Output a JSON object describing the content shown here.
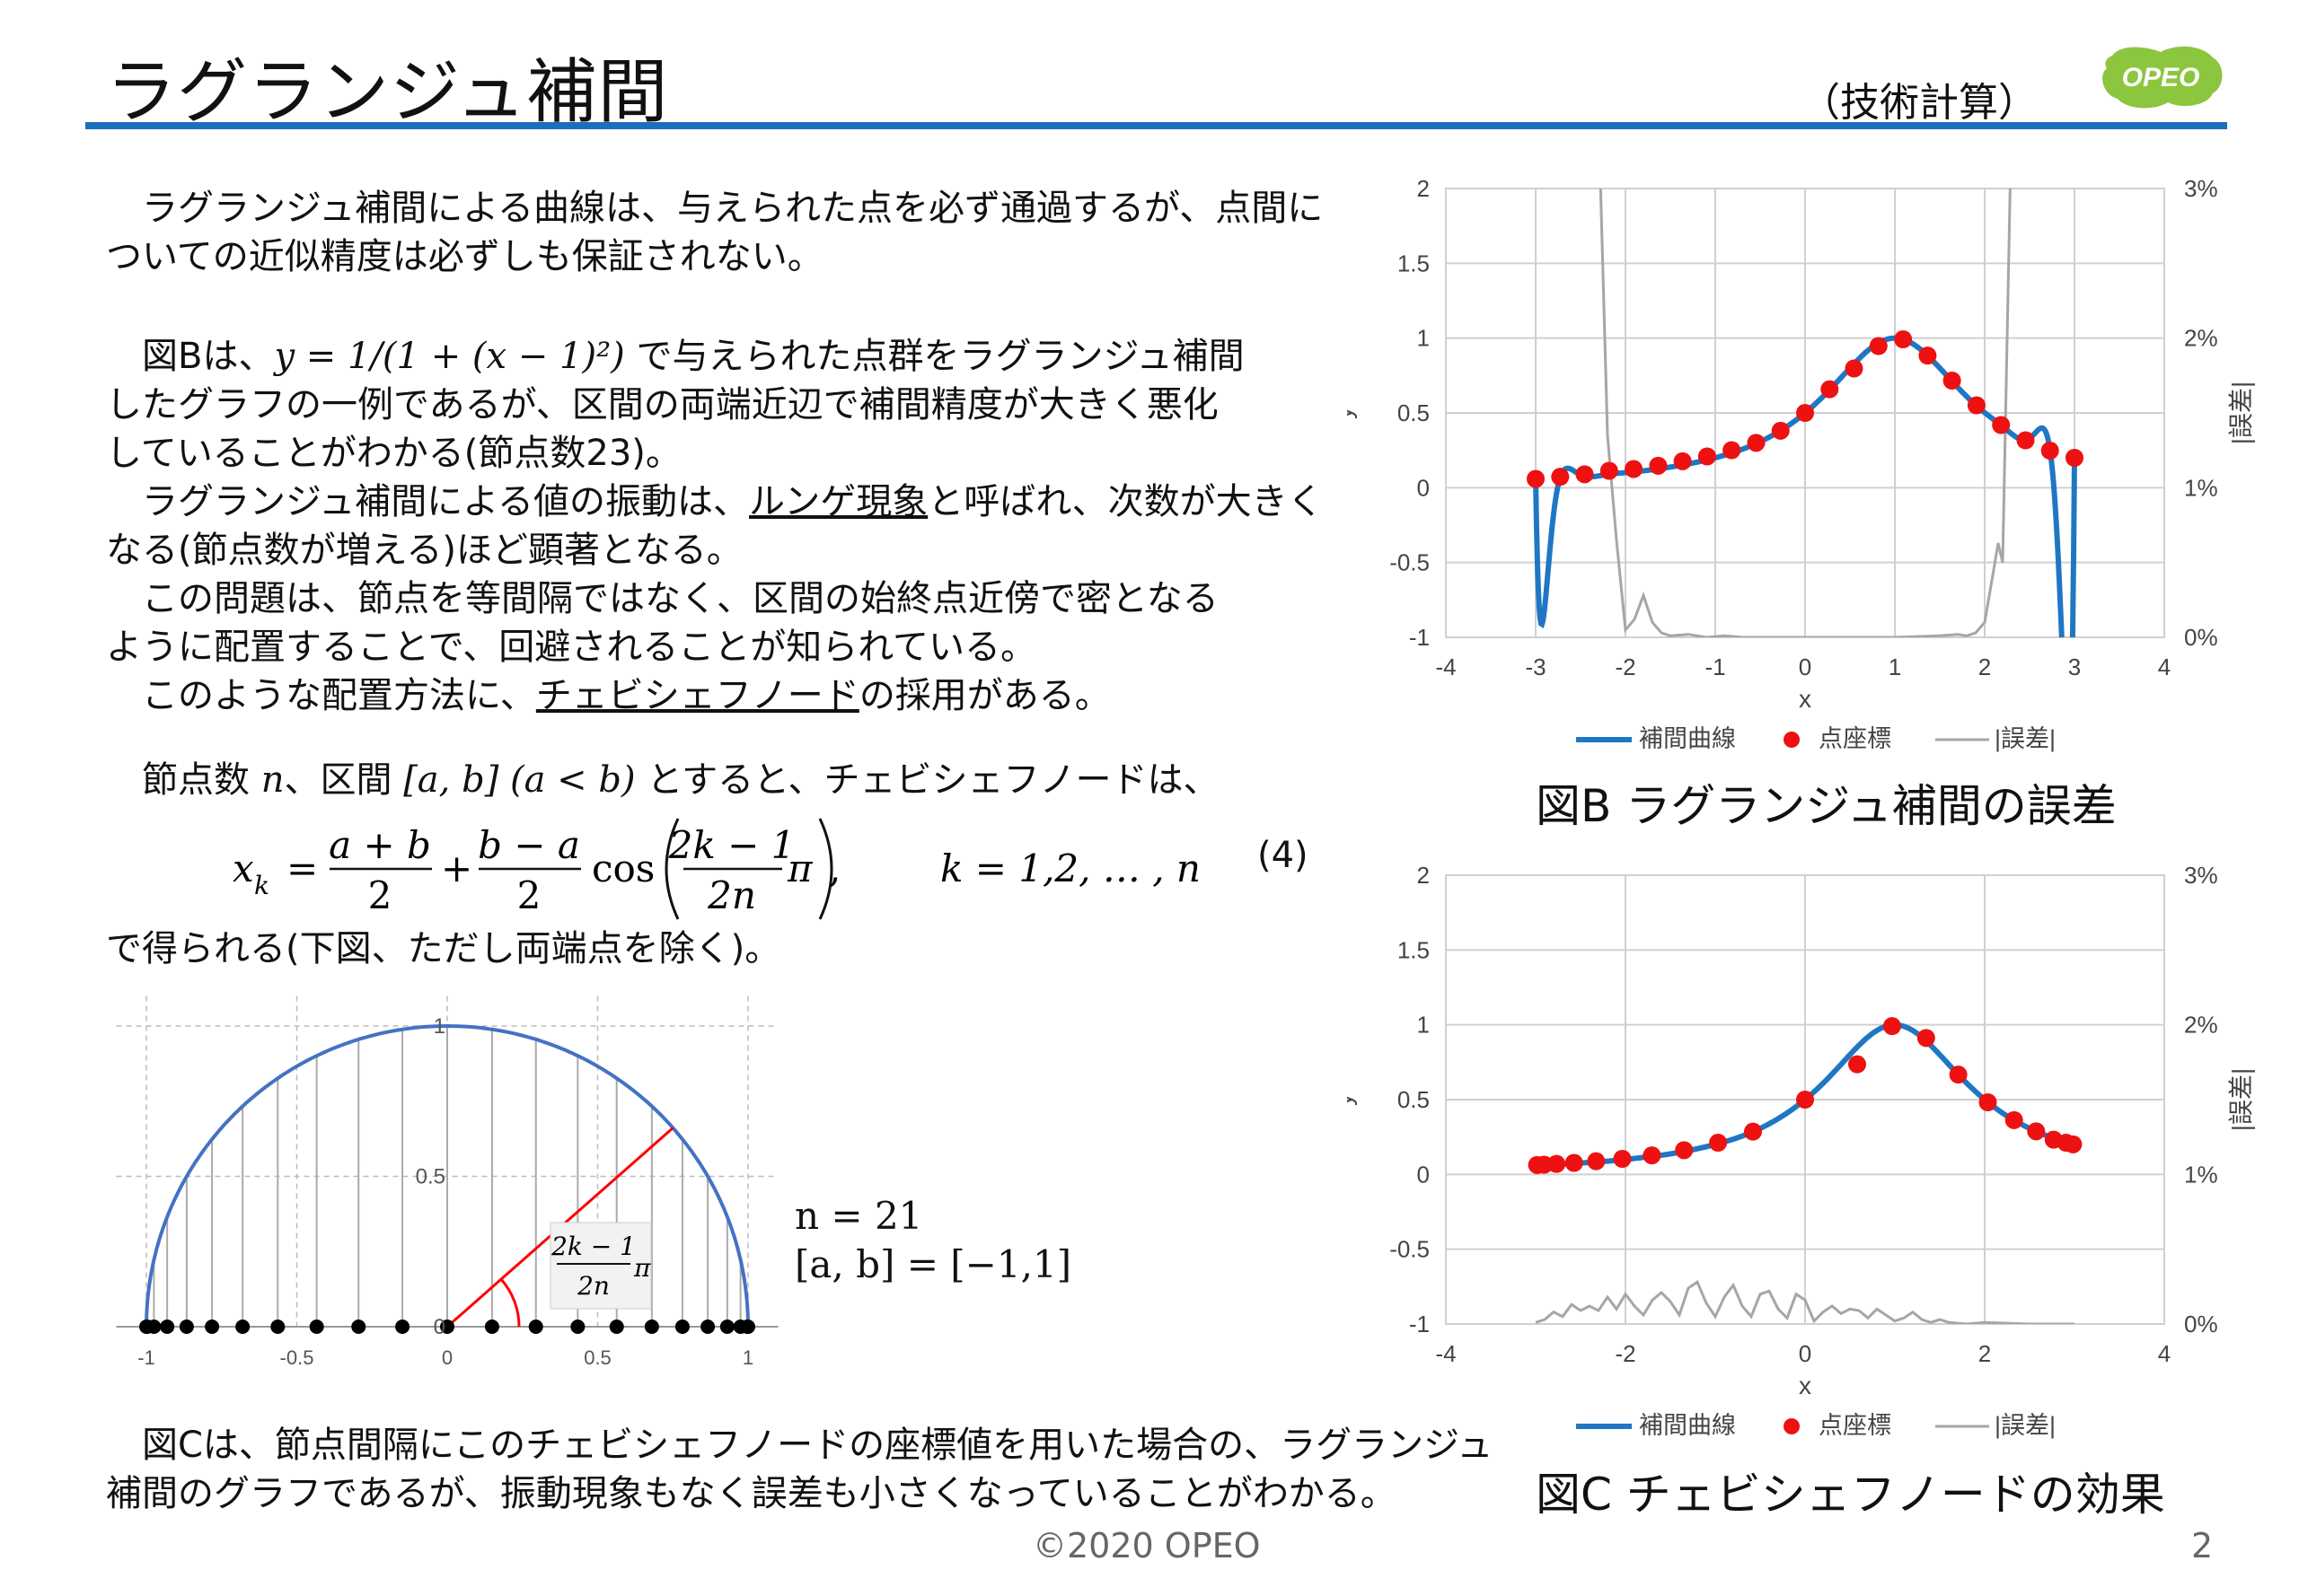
{
  "header": {
    "title": "ラグランジュ補間",
    "category": "（技術計算）",
    "logo_text": "OPEO",
    "rule_color": "#1a6ebd"
  },
  "body": {
    "p1": "　ラグランジュ補間による曲線は、与えられた点を必ず通過するが、点間に\nついての近似精度は必ずしも保証されない。",
    "p2a": "　図Bは、",
    "p2_formula": "y = 1/(1 + (x − 1)²)",
    "p2b": " で与えられた点群をラグランジュ補間\nしたグラフの一例であるが、区間の両端近辺で補間精度が大きく悪化\nしていることがわかる(節点数23)。",
    "p3a": "　ラグランジュ補間による値の振動は、",
    "p3_link": "ルンゲ現象",
    "p3b": "と呼ばれ、次数が大きく\nなる(節点数が増える)ほど顕著となる。",
    "p4": "　この問題は、節点を等間隔ではなく、区間の始終点近傍で密となる\nように配置することで、回避されることが知られている。",
    "p5a": "　このような配置方法に、",
    "p5_link": "チェビシェフノード",
    "p5b": "の採用がある。",
    "p6a": "　節点数 ",
    "p6_n": "n",
    "p6b": "、区間 ",
    "p6_interval": "[a, b] (a < b)",
    "p6c": " とすると、チェビシェフノードは、",
    "p7": "で得られる(下図、ただし両端点を除く)。",
    "p8": "　図Cは、節点間隔にこのチェビシェフノードの座標値を用いた場合の、ラグランジュ\n補間のグラフであるが、振動現象もなく誤差も小さくなっていることがわかる。"
  },
  "formula": {
    "lhs": "x",
    "lhs_sub": "k",
    "eq": "=",
    "frac1_num": "a + b",
    "frac1_den": "2",
    "plus": "+",
    "frac2_num": "b − a",
    "frac2_den": "2",
    "cos": "cos",
    "frac3_num": "2k − 1",
    "frac3_den": "2n",
    "pi": "π",
    "comma": ",",
    "range": "k = 1,2, … , n",
    "number": "(4)"
  },
  "unit_circle": {
    "x_ticks": [
      "-1",
      "-0.5",
      "0",
      "0.5",
      "1"
    ],
    "y_ticks": [
      "0",
      "0.5",
      "1"
    ],
    "angle_num": "2k − 1",
    "angle_den": "2n",
    "angle_pi": "π",
    "n": 21,
    "arc_color": "#4472c4",
    "radius_color": "#ff0000"
  },
  "params": {
    "n_line": "n = 21",
    "ab_line": "[a, b] = [−1,1]"
  },
  "chart_data": [
    {
      "type": "line",
      "caption": "図B ラグランジュ補間の誤差",
      "xlabel": "x",
      "ylabel": "y",
      "y2label": "|誤差|",
      "xlim": [
        -4,
        4
      ],
      "ylim": [
        -1,
        2
      ],
      "y2lim": [
        0,
        3
      ],
      "x_ticks": [
        "-4",
        "-3",
        "-2",
        "-1",
        "0",
        "1",
        "2",
        "3",
        "4"
      ],
      "y_ticks": [
        "-1",
        "-0.5",
        "0",
        "0.5",
        "1",
        "1.5",
        "2"
      ],
      "y2_ticks": [
        "0%",
        "1%",
        "2%",
        "3%"
      ],
      "legend": [
        "補間曲線",
        "点座標",
        "|誤差|"
      ],
      "legend_position": "bottom",
      "colors": {
        "curve": "#1f77c4",
        "points": "#ee1111",
        "error": "#a6a6a6"
      },
      "points": {
        "x": [
          -3,
          -2.727,
          -2.455,
          -2.182,
          -1.909,
          -1.636,
          -1.364,
          -1.091,
          -0.818,
          -0.545,
          -0.273,
          0,
          0.273,
          0.545,
          0.818,
          1.091,
          1.364,
          1.636,
          1.909,
          2.182,
          2.455,
          2.727,
          3
        ],
        "y": [
          0.059,
          0.073,
          0.09,
          0.113,
          0.125,
          0.147,
          0.177,
          0.209,
          0.251,
          0.3,
          0.381,
          0.5,
          0.658,
          0.797,
          0.947,
          0.992,
          0.883,
          0.716,
          0.551,
          0.419,
          0.317,
          0.248,
          0.2
        ]
      },
      "error": {
        "x": [
          -3,
          -2.85,
          -2.727,
          -2.6,
          -2.455,
          -2.3,
          -2.2,
          -2.1,
          -2.0,
          -1.9,
          -1.8,
          -1.7,
          -1.6,
          -1.5,
          -1.3,
          -1.1,
          -0.9,
          -0.7,
          -0.5,
          0,
          0.5,
          1,
          1.5,
          1.7,
          1.8,
          1.9,
          2.0,
          2.1,
          2.15,
          2.2,
          2.3,
          2.4,
          2.5,
          2.6,
          2.727,
          2.85,
          3
        ],
        "y": [
          3.5,
          3.5,
          3.5,
          3.5,
          3.5,
          3.5,
          1.35,
          0.65,
          0.05,
          0.12,
          0.28,
          0.1,
          0.03,
          0.01,
          0.02,
          0.0,
          0.01,
          0.0,
          0.0,
          0.0,
          0.0,
          0.0,
          0.01,
          0.02,
          0.01,
          0.03,
          0.1,
          0.45,
          0.63,
          0.5,
          3.5,
          3.5,
          3.5,
          3.5,
          3.5,
          3.5,
          3.5
        ]
      }
    },
    {
      "type": "line",
      "caption": "図C チェビシェフノードの効果",
      "xlabel": "x",
      "ylabel": "y",
      "y2label": "|誤差|",
      "xlim": [
        -4,
        4
      ],
      "ylim": [
        -1,
        2
      ],
      "y2lim": [
        0,
        3
      ],
      "x_ticks": [
        "-4",
        "-2",
        "0",
        "2",
        "4"
      ],
      "y_ticks": [
        "-1",
        "-0.5",
        "0",
        "0.5",
        "1",
        "1.5",
        "2"
      ],
      "y2_ticks": [
        "0%",
        "1%",
        "2%",
        "3%"
      ],
      "legend": [
        "補間曲線",
        "点座標",
        "|誤差|"
      ],
      "legend_position": "bottom",
      "colors": {
        "curve": "#1f77c4",
        "points": "#ee1111",
        "error": "#a6a6a6"
      },
      "points": {
        "x": [
          -2.984,
          -2.906,
          -2.768,
          -2.573,
          -2.327,
          -2.035,
          -1.706,
          -1.348,
          -0.969,
          -0.58,
          0.0,
          0.58,
          0.969,
          1.348,
          1.706,
          2.035,
          2.327,
          2.573,
          2.768,
          2.906,
          2.984
        ],
        "y": [
          0.063,
          0.065,
          0.07,
          0.077,
          0.088,
          0.104,
          0.127,
          0.162,
          0.212,
          0.286,
          0.5,
          0.736,
          0.991,
          0.912,
          0.667,
          0.482,
          0.363,
          0.288,
          0.232,
          0.212,
          0.201
        ]
      },
      "error": {
        "x": [
          -3,
          -2.9,
          -2.8,
          -2.7,
          -2.6,
          -2.5,
          -2.4,
          -2.3,
          -2.2,
          -2.1,
          -2.0,
          -1.9,
          -1.8,
          -1.7,
          -1.6,
          -1.5,
          -1.4,
          -1.3,
          -1.2,
          -1.1,
          -1.0,
          -0.9,
          -0.8,
          -0.7,
          -0.6,
          -0.5,
          -0.4,
          -0.3,
          -0.2,
          -0.1,
          0,
          0.1,
          0.2,
          0.3,
          0.4,
          0.5,
          0.6,
          0.7,
          0.8,
          0.9,
          1.0,
          1.1,
          1.2,
          1.3,
          1.4,
          1.5,
          1.6,
          1.8,
          2.0,
          2.5,
          3
        ],
        "y": [
          0.01,
          0.03,
          0.08,
          0.05,
          0.13,
          0.09,
          0.12,
          0.09,
          0.18,
          0.1,
          0.2,
          0.12,
          0.06,
          0.16,
          0.21,
          0.15,
          0.06,
          0.24,
          0.28,
          0.14,
          0.05,
          0.18,
          0.26,
          0.12,
          0.05,
          0.2,
          0.22,
          0.1,
          0.04,
          0.2,
          0.16,
          0.02,
          0.08,
          0.12,
          0.07,
          0.1,
          0.09,
          0.04,
          0.1,
          0.06,
          0.02,
          0.04,
          0.08,
          0.03,
          0.01,
          0.03,
          0.01,
          0.0,
          0.01,
          0.0,
          0.0
        ]
      }
    }
  ],
  "footer": {
    "copyright": "©2020 OPEO",
    "page": "2"
  }
}
